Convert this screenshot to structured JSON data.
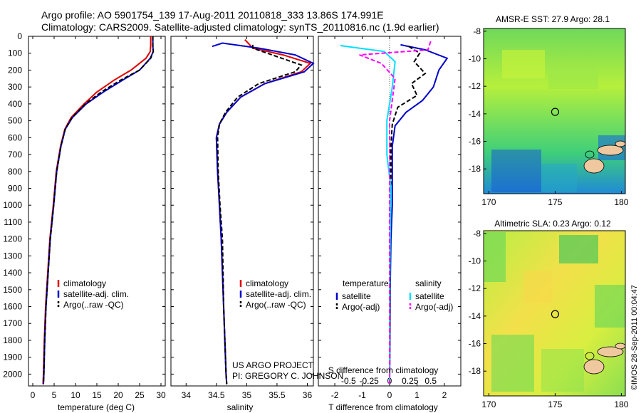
{
  "header": {
    "line1": "Argo profile: AO 5901754_139 17-Aug-2011 20110818_333 13.86S 174.991E",
    "line2": "Climatology: CARS2009. Satellite-adjusted climatology: synTS_20110816.nc (1.9d earlier)"
  },
  "colors": {
    "climatology": "#e00000",
    "satellite": "#0000cc",
    "argo": "#000000",
    "salinity_satellite": "#00e0ff",
    "salinity_argo": "#ff00ff"
  },
  "chart_data": [
    {
      "type": "line",
      "panel": "temperature",
      "xlabel": "temperature (deg C)",
      "xlim": [
        -1,
        31
      ],
      "xticks": [
        0,
        5,
        10,
        15,
        20,
        25,
        30
      ],
      "ylim": [
        2070,
        0
      ],
      "yticks": [
        0,
        100,
        200,
        300,
        400,
        500,
        600,
        700,
        800,
        900,
        1000,
        1100,
        1200,
        1300,
        1400,
        1500,
        1600,
        1700,
        1800,
        1900,
        2000
      ],
      "legend": [
        "climatology",
        "satellite-adj. clim.",
        "Argo(..raw -QC)"
      ],
      "series": [
        {
          "name": "climatology",
          "style": "solid",
          "points": [
            [
              27.6,
              0
            ],
            [
              27.6,
              50
            ],
            [
              27.5,
              90
            ],
            [
              26.5,
              130
            ],
            [
              23,
              200
            ],
            [
              19,
              260
            ],
            [
              15,
              330
            ],
            [
              12,
              400
            ],
            [
              9,
              480
            ],
            [
              7.5,
              550
            ],
            [
              6.5,
              650
            ],
            [
              5.5,
              800
            ],
            [
              4.8,
              1000
            ],
            [
              4,
              1200
            ],
            [
              3.5,
              1400
            ],
            [
              3,
              1600
            ],
            [
              2.7,
              1800
            ],
            [
              2.5,
              2000
            ],
            [
              2.4,
              2060
            ]
          ]
        },
        {
          "name": "satellite-adj. clim.",
          "style": "solid",
          "points": [
            [
              28.1,
              0
            ],
            [
              28.1,
              60
            ],
            [
              28.2,
              90
            ],
            [
              27.5,
              130
            ],
            [
              25,
              200
            ],
            [
              21,
              260
            ],
            [
              16.5,
              330
            ],
            [
              12.5,
              400
            ],
            [
              9.3,
              480
            ],
            [
              7.6,
              550
            ],
            [
              6.6,
              650
            ],
            [
              5.6,
              800
            ],
            [
              4.9,
              1000
            ],
            [
              4.1,
              1200
            ],
            [
              3.6,
              1400
            ],
            [
              3.1,
              1600
            ],
            [
              2.8,
              1800
            ],
            [
              2.6,
              2000
            ],
            [
              2.5,
              2060
            ]
          ]
        },
        {
          "name": "Argo(..raw -QC)",
          "style": "dashed",
          "points": [
            [
              28.1,
              0
            ],
            [
              28.1,
              60
            ],
            [
              28.2,
              90
            ],
            [
              27.6,
              130
            ],
            [
              25,
              200
            ],
            [
              20.5,
              260
            ],
            [
              16,
              330
            ],
            [
              12.3,
              400
            ],
            [
              9.2,
              480
            ],
            [
              7.6,
              550
            ],
            [
              6.6,
              650
            ],
            [
              5.6,
              800
            ],
            [
              4.9,
              1000
            ],
            [
              4.1,
              1200
            ],
            [
              3.6,
              1400
            ],
            [
              3.1,
              1600
            ],
            [
              2.8,
              1800
            ],
            [
              2.6,
              2000
            ],
            [
              2.5,
              2060
            ]
          ]
        }
      ]
    },
    {
      "type": "line",
      "panel": "salinity",
      "xlabel": "salinity",
      "xlim": [
        33.75,
        36.1
      ],
      "xticks": [
        34,
        34.5,
        35,
        35.5,
        36
      ],
      "ylim": [
        2070,
        0
      ],
      "legend": [
        "climatology",
        "satellite-adj. clim.",
        "Argo(..raw -QC)"
      ],
      "series": [
        {
          "name": "climatology",
          "style": "solid",
          "points": [
            [
              34.97,
              20
            ],
            [
              35.1,
              70
            ],
            [
              35.6,
              110
            ],
            [
              36.05,
              160
            ],
            [
              35.9,
              210
            ],
            [
              35.3,
              280
            ],
            [
              34.9,
              360
            ],
            [
              34.67,
              450
            ],
            [
              34.55,
              520
            ],
            [
              34.5,
              600
            ],
            [
              34.52,
              800
            ],
            [
              34.55,
              1000
            ],
            [
              34.58,
              1200
            ],
            [
              34.6,
              1400
            ],
            [
              34.62,
              1600
            ],
            [
              34.64,
              1800
            ],
            [
              34.66,
              2000
            ],
            [
              34.67,
              2060
            ]
          ]
        },
        {
          "name": "satellite-adj. clim.",
          "style": "solid",
          "points": [
            [
              34.43,
              60
            ],
            [
              34.6,
              40
            ],
            [
              35.2,
              70
            ],
            [
              35.8,
              110
            ],
            [
              36.1,
              160
            ],
            [
              35.95,
              210
            ],
            [
              35.3,
              280
            ],
            [
              34.9,
              360
            ],
            [
              34.67,
              450
            ],
            [
              34.55,
              520
            ],
            [
              34.5,
              600
            ],
            [
              34.52,
              800
            ],
            [
              34.55,
              1000
            ],
            [
              34.58,
              1200
            ],
            [
              34.6,
              1400
            ],
            [
              34.62,
              1600
            ],
            [
              34.64,
              1800
            ],
            [
              34.66,
              2000
            ],
            [
              34.67,
              2060
            ]
          ]
        },
        {
          "name": "Argo(..raw -QC)",
          "style": "dashed",
          "points": [
            [
              35.1,
              50
            ],
            [
              35.1,
              70
            ],
            [
              35.5,
              120
            ],
            [
              35.9,
              170
            ],
            [
              35.8,
              210
            ],
            [
              35.2,
              280
            ],
            [
              34.85,
              360
            ],
            [
              34.65,
              450
            ],
            [
              34.55,
              520
            ],
            [
              34.52,
              600
            ],
            [
              34.53,
              800
            ],
            [
              34.56,
              1000
            ],
            [
              34.6,
              1200
            ],
            [
              34.61,
              1400
            ],
            [
              34.62,
              1600
            ],
            [
              34.64,
              1800
            ],
            [
              34.66,
              2000
            ],
            [
              34.67,
              2060
            ]
          ]
        }
      ],
      "annotation": [
        "US ARGO PROJECT",
        "PI: GREGORY C. JOHNSON"
      ]
    },
    {
      "type": "line",
      "panel": "difference",
      "xlabel": "T difference from climatology",
      "xlabel_top": "S difference from climatology",
      "xlim": [
        -2.6,
        2.6
      ],
      "xticks": [
        -2,
        -1,
        0,
        1,
        2
      ],
      "xticks_s": [
        "-0.5",
        "-0.25",
        "0",
        "0.25",
        "0.5"
      ],
      "ylim": [
        2070,
        0
      ],
      "legend_left_title": "temperature",
      "legend_right_title": "salinity",
      "legend": [
        "satellite",
        "Argo(-adj)",
        "satellite",
        "Argo(-adj)"
      ],
      "series": [
        {
          "name": "satellite",
          "variable": "temperature",
          "style": "solid",
          "points": [
            [
              0.4,
              50
            ],
            [
              1.3,
              80
            ],
            [
              2.1,
              130
            ],
            [
              1.8,
              200
            ],
            [
              1.6,
              300
            ],
            [
              1.2,
              380
            ],
            [
              0.6,
              450
            ],
            [
              0.2,
              530
            ],
            [
              0.1,
              650
            ],
            [
              0.1,
              800
            ],
            [
              0.1,
              1000
            ],
            [
              0.05,
              1200
            ],
            [
              0.02,
              1500
            ],
            [
              0.01,
              1800
            ],
            [
              0,
              2060
            ]
          ]
        },
        {
          "name": "Argo(-adj)",
          "variable": "temperature",
          "style": "dashed",
          "points": [
            [
              0.7,
              60
            ],
            [
              1.1,
              100
            ],
            [
              0.9,
              150
            ],
            [
              1.3,
              220
            ],
            [
              0.8,
              280
            ],
            [
              1.0,
              350
            ],
            [
              0.3,
              420
            ],
            [
              0.1,
              520
            ],
            [
              0.05,
              650
            ],
            [
              0.05,
              800
            ],
            [
              0.03,
              1000
            ],
            [
              0.02,
              1300
            ],
            [
              0.01,
              1600
            ],
            [
              0,
              2060
            ]
          ]
        },
        {
          "name": "satellite",
          "variable": "salinity",
          "style": "solid",
          "points": [
            [
              -1.8,
              55
            ],
            [
              -0.2,
              90
            ],
            [
              0.2,
              150
            ],
            [
              0.1,
              300
            ],
            [
              -0.1,
              500
            ],
            [
              -0.1,
              700
            ],
            [
              0.05,
              900
            ],
            [
              0.02,
              1200
            ],
            [
              0,
              1600
            ],
            [
              0,
              2060
            ]
          ]
        },
        {
          "name": "Argo(-adj)",
          "variable": "salinity",
          "style": "dashed",
          "points": [
            [
              1.5,
              30
            ],
            [
              1.4,
              80
            ],
            [
              -1.1,
              110
            ],
            [
              -0.3,
              160
            ],
            [
              0.2,
              250
            ],
            [
              0,
              500
            ],
            [
              0,
              1000
            ],
            [
              0,
              2060
            ]
          ]
        }
      ]
    },
    {
      "type": "heatmap",
      "panel": "sst_map",
      "title": "AMSR-E SST: 27.9 Argo: 28.1",
      "xlim": [
        169.6,
        180.3
      ],
      "ylim": [
        -19.8,
        -7.8
      ],
      "xticks": [
        170,
        175,
        180
      ],
      "yticks": [
        -8,
        -10,
        -12,
        -14,
        -16,
        -18
      ],
      "marker": {
        "lon": 175,
        "lat": -13.86
      }
    },
    {
      "type": "heatmap",
      "panel": "sla_map",
      "title": "Altimetric SLA: 0.23 Argo: 0.12",
      "xlim": [
        169.6,
        180.3
      ],
      "ylim": [
        -19.8,
        -7.8
      ],
      "xticks": [
        170,
        175,
        180
      ],
      "yticks": [
        -8,
        -10,
        -12,
        -14,
        -16,
        -18
      ],
      "marker": {
        "lon": 175,
        "lat": -13.86
      }
    }
  ],
  "footer": {
    "stamp": "©IMOS 28-Sep-2011 00:04:47"
  }
}
